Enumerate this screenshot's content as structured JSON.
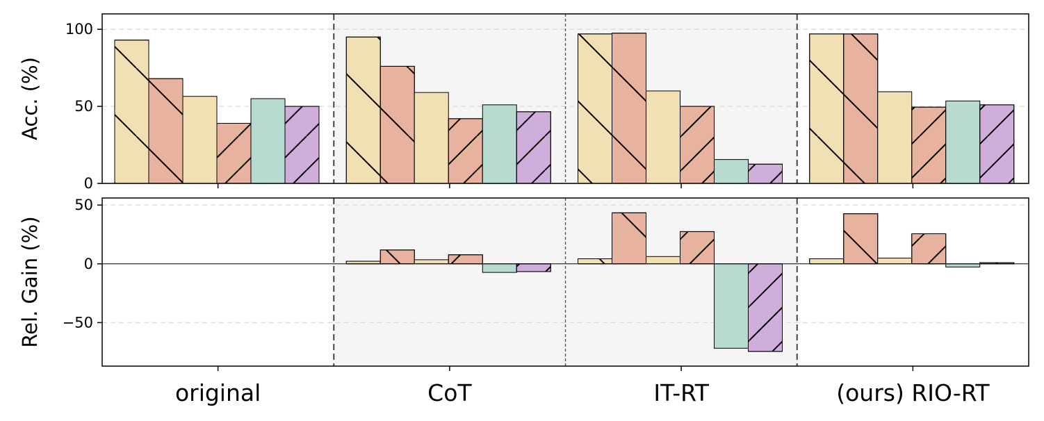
{
  "chart_data": [
    {
      "id": "accuracy",
      "type": "bar",
      "ylabel": "Acc. (%)",
      "ylim": [
        0,
        110
      ],
      "yticks": [
        0,
        50,
        100
      ],
      "grid": "y-dashed",
      "categories": [
        "original",
        "CoT",
        "IT-RT",
        "(ours) RIO-RT"
      ],
      "bars": [
        {
          "color": "#f0e0b4",
          "hatch": "\\",
          "values": [
            93,
            95,
            97,
            97
          ]
        },
        {
          "color": "#e8b39e",
          "hatch": "\\",
          "values": [
            68,
            76,
            97.5,
            97
          ]
        },
        {
          "color": "#f0e0b4",
          "hatch": "",
          "values": [
            56.5,
            59,
            60,
            59.5
          ]
        },
        {
          "color": "#e8b39e",
          "hatch": "/",
          "values": [
            39,
            42,
            50,
            49.5
          ]
        },
        {
          "color": "#b7dbd0",
          "hatch": "",
          "values": [
            55,
            51,
            15.5,
            53.5
          ]
        },
        {
          "color": "#cfaedb",
          "hatch": "/",
          "values": [
            50,
            46.5,
            12.5,
            51
          ]
        }
      ]
    },
    {
      "id": "relative-gain",
      "type": "bar",
      "ylabel": "Rel. Gain (%)",
      "ylim": [
        -87,
        56
      ],
      "yticks": [
        -50,
        0,
        50
      ],
      "ytick_labels": [
        "−50",
        "0",
        "50"
      ],
      "grid": "y-dashed",
      "zero_line": true,
      "categories": [
        "original",
        "CoT",
        "IT-RT",
        "(ours) RIO-RT"
      ],
      "bars": [
        {
          "color": "#f0e0b4",
          "hatch": "\\",
          "values": [
            0,
            2.2,
            4.3,
            4.3
          ]
        },
        {
          "color": "#e8b39e",
          "hatch": "\\",
          "values": [
            0,
            11.8,
            43.4,
            42.6
          ]
        },
        {
          "color": "#f0e0b4",
          "hatch": "",
          "values": [
            0,
            3.5,
            6.2,
            4.9
          ]
        },
        {
          "color": "#e8b39e",
          "hatch": "/",
          "values": [
            0,
            7.7,
            27.4,
            25.6
          ]
        },
        {
          "color": "#b7dbd0",
          "hatch": "",
          "values": [
            0,
            -7.3,
            -71.8,
            -2.7
          ]
        },
        {
          "color": "#cfaedb",
          "hatch": "/",
          "values": [
            0,
            -6.6,
            -74.5,
            1.0
          ]
        }
      ]
    }
  ],
  "group_separators": [
    "dashed",
    "dotted",
    "dashed"
  ],
  "shaded_groups": [
    1,
    2
  ],
  "shade_color": "#f5f5f5"
}
